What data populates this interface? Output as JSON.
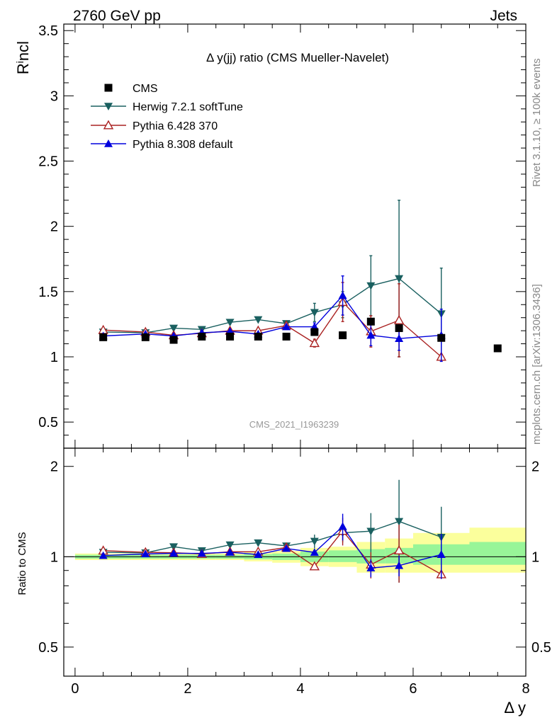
{
  "header": {
    "left": "2760 GeV pp",
    "right": "Jets"
  },
  "side": {
    "rivet": "Rivet 3.1.10, ≥ 100k events",
    "mcplots": "mcplots.cern.ch [arXiv:1306.3436]"
  },
  "watermark": "CMS_2021_I1963239",
  "chart_data": {
    "type": "scatter",
    "title": "Δ y(jj) ratio (CMS Mueller-Navelet)",
    "ylabel_main": "R^incl",
    "ylabel_ratio": "Ratio to CMS",
    "xlabel": "Δ y",
    "xlim": [
      -0.2,
      8.0
    ],
    "ylim_main": [
      0.3,
      3.55
    ],
    "ylim_ratio": [
      0.4,
      2.3
    ],
    "ratio_log_scale": true,
    "x_ticks": [
      "0",
      "2",
      "4",
      "6",
      "8"
    ],
    "y_ticks_main": [
      "0.5",
      "1",
      "1.5",
      "2",
      "2.5",
      "3",
      "3.5"
    ],
    "y_ticks_ratio": [
      "0.5",
      "1",
      "2"
    ],
    "legend_position": "top-left",
    "series": [
      {
        "name": "CMS",
        "color": "#000000",
        "marker": "square",
        "x": [
          0.5,
          1.25,
          1.75,
          2.25,
          2.75,
          3.25,
          3.75,
          4.25,
          4.75,
          5.25,
          5.75,
          6.5,
          7.5
        ],
        "y": [
          1.15,
          1.15,
          1.13,
          1.155,
          1.155,
          1.155,
          1.155,
          1.19,
          1.165,
          1.27,
          1.22,
          1.145,
          1.065
        ]
      },
      {
        "name": "Herwig 7.2.1 softTune",
        "color": "#1a6060",
        "marker": "triangle-down",
        "x": [
          0.5,
          1.25,
          1.75,
          2.25,
          2.75,
          3.25,
          3.75,
          4.25,
          4.75,
          5.25,
          5.75,
          6.5
        ],
        "y": [
          1.19,
          1.185,
          1.22,
          1.21,
          1.265,
          1.285,
          1.255,
          1.34,
          1.4,
          1.545,
          1.6,
          1.33
        ],
        "err": [
          0.01,
          0.01,
          0.01,
          0.01,
          0.01,
          0.01,
          0.02,
          0.07,
          0.1,
          0.23,
          0.6,
          0.35
        ]
      },
      {
        "name": "Pythia 6.428 370",
        "color": "#aa2222",
        "marker": "triangle-up-open",
        "x": [
          0.5,
          1.25,
          1.75,
          2.25,
          2.75,
          3.25,
          3.75,
          4.25,
          4.75,
          5.25,
          5.75,
          6.5
        ],
        "y": [
          1.205,
          1.19,
          1.165,
          1.18,
          1.2,
          1.2,
          1.24,
          1.105,
          1.42,
          1.195,
          1.28,
          1.0
        ],
        "err": [
          0.01,
          0.01,
          0.01,
          0.01,
          0.01,
          0.01,
          0.02,
          0.03,
          0.15,
          0.12,
          0.28,
          0.01
        ]
      },
      {
        "name": "Pythia 8.308 default",
        "color": "#0000dd",
        "marker": "triangle-up",
        "x": [
          0.5,
          1.25,
          1.75,
          2.25,
          2.75,
          3.25,
          3.75,
          4.25,
          4.75,
          5.25,
          5.75,
          6.5
        ],
        "y": [
          1.16,
          1.175,
          1.16,
          1.185,
          1.195,
          1.175,
          1.23,
          1.23,
          1.47,
          1.165,
          1.14,
          1.165
        ],
        "err": [
          0.01,
          0.01,
          0.01,
          0.01,
          0.01,
          0.01,
          0.01,
          0.03,
          0.15,
          0.08,
          0.09,
          0.2
        ]
      }
    ],
    "cms_uncertainty_bands": {
      "bin_edges": [
        0.0,
        1.0,
        1.5,
        2.0,
        2.5,
        3.0,
        3.5,
        4.0,
        4.5,
        5.0,
        5.5,
        6.0,
        7.0,
        8.0
      ],
      "inner_lo": [
        0.985,
        0.985,
        0.985,
        0.985,
        0.985,
        0.98,
        0.975,
        0.96,
        0.96,
        0.95,
        0.95,
        0.94,
        0.94
      ],
      "inner_hi": [
        1.015,
        1.015,
        1.015,
        1.015,
        1.015,
        1.02,
        1.025,
        1.04,
        1.05,
        1.06,
        1.07,
        1.1,
        1.12
      ],
      "outer_lo": [
        0.975,
        0.975,
        0.975,
        0.975,
        0.975,
        0.965,
        0.955,
        0.93,
        0.925,
        0.885,
        0.885,
        0.885,
        0.885
      ],
      "outer_hi": [
        1.025,
        1.025,
        1.025,
        1.025,
        1.025,
        1.035,
        1.045,
        1.07,
        1.08,
        1.12,
        1.15,
        1.2,
        1.25
      ],
      "inner_color": "#98f598",
      "outer_color": "#fbff9c"
    }
  }
}
